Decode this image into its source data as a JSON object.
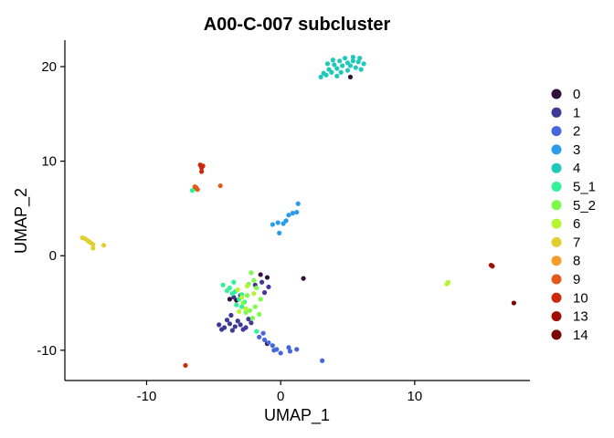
{
  "chart_data": {
    "type": "scatter",
    "title": "A00-C-007 subcluster",
    "xlabel": "UMAP_1",
    "ylabel": "UMAP_2",
    "xlim": [
      -16.1,
      18.6
    ],
    "ylim": [
      -13.2,
      22.8
    ],
    "xticks": [
      -10,
      0,
      10
    ],
    "yticks": [
      -10,
      0,
      10,
      20
    ],
    "xtick_labels": [
      "-10",
      "0",
      "10"
    ],
    "ytick_labels": [
      "-10",
      "0",
      "10",
      "20"
    ],
    "grid": false,
    "legend_position": "right",
    "series": [
      {
        "name": "0",
        "color": "#30123b",
        "points": [
          [
            5.2,
            18.9
          ],
          [
            1.7,
            -2.4
          ],
          [
            -1.5,
            -2.0
          ],
          [
            -1.0,
            -2.3
          ],
          [
            -3.8,
            -4.6
          ],
          [
            -3.3,
            -4.7
          ],
          [
            -1.0,
            -9.3
          ]
        ]
      },
      {
        "name": "1",
        "color": "#3e3994",
        "points": [
          [
            -4.6,
            -7.3
          ],
          [
            -4.2,
            -7.6
          ],
          [
            -3.8,
            -7.2
          ],
          [
            -3.4,
            -7.5
          ],
          [
            -3.0,
            -7.3
          ],
          [
            -2.6,
            -7.6
          ],
          [
            -4.0,
            -6.8
          ],
          [
            -3.2,
            -6.9
          ],
          [
            -2.2,
            -7.1
          ],
          [
            -4.4,
            -7.8
          ],
          [
            -3.6,
            -7.9
          ],
          [
            -2.8,
            -7.8
          ],
          [
            -1.4,
            -2.8
          ],
          [
            -1.9,
            -3.1
          ],
          [
            -0.9,
            -3.3
          ],
          [
            -1.2,
            -3.9
          ],
          [
            -2.4,
            -6.7
          ],
          [
            -3.5,
            -4.4
          ],
          [
            -3.0,
            -4.2
          ],
          [
            -3.7,
            -6.3
          ]
        ]
      },
      {
        "name": "2",
        "color": "#4666dd",
        "points": [
          [
            -1.6,
            -8.6
          ],
          [
            -1.2,
            -8.9
          ],
          [
            -0.9,
            -9.2
          ],
          [
            -0.6,
            -9.5
          ],
          [
            -0.3,
            -9.9
          ],
          [
            0.0,
            -10.3
          ],
          [
            -0.5,
            -10.0
          ],
          [
            0.6,
            -9.7
          ],
          [
            -1.3,
            -8.2
          ],
          [
            0.7,
            -10.1
          ],
          [
            1.2,
            -9.9
          ],
          [
            3.1,
            -11.1
          ]
        ]
      },
      {
        "name": "3",
        "color": "#2a9ceb",
        "points": [
          [
            -0.6,
            3.3
          ],
          [
            -0.2,
            3.5
          ],
          [
            0.2,
            3.4
          ],
          [
            0.6,
            4.3
          ],
          [
            0.9,
            4.5
          ],
          [
            1.2,
            4.6
          ],
          [
            1.3,
            5.5
          ],
          [
            -0.1,
            2.4
          ],
          [
            0.4,
            3.7
          ]
        ]
      },
      {
        "name": "4",
        "color": "#1fc9ba",
        "points": [
          [
            3.0,
            18.9
          ],
          [
            3.4,
            19.1
          ],
          [
            3.8,
            19.4
          ],
          [
            4.2,
            19.8
          ],
          [
            4.6,
            20.1
          ],
          [
            5.0,
            20.4
          ],
          [
            5.4,
            20.6
          ],
          [
            5.8,
            20.5
          ],
          [
            6.2,
            20.3
          ],
          [
            3.6,
            19.7
          ],
          [
            4.0,
            20.2
          ],
          [
            4.4,
            20.6
          ],
          [
            4.8,
            20.9
          ],
          [
            5.2,
            20.1
          ],
          [
            5.6,
            19.9
          ],
          [
            6.0,
            19.7
          ],
          [
            3.2,
            19.3
          ],
          [
            4.5,
            19.4
          ],
          [
            5.0,
            19.6
          ],
          [
            3.9,
            20.7
          ],
          [
            5.4,
            21.0
          ],
          [
            4.2,
            19.0
          ],
          [
            5.9,
            20.9
          ],
          [
            3.5,
            20.3
          ]
        ]
      },
      {
        "name": "5_1",
        "color": "#31f299",
        "points": [
          [
            -4.3,
            -3.1
          ],
          [
            -3.8,
            -3.4
          ],
          [
            -3.4,
            -3.8
          ],
          [
            -2.9,
            -4.1
          ],
          [
            -3.6,
            -4.0
          ],
          [
            -3.1,
            -4.6
          ],
          [
            -2.7,
            -4.9
          ],
          [
            -3.3,
            -5.2
          ],
          [
            -2.9,
            -5.4
          ],
          [
            -4.0,
            -3.7
          ],
          [
            -3.5,
            -2.8
          ],
          [
            -6.4,
            7.1
          ],
          [
            -6.6,
            6.9
          ],
          [
            -1.8,
            -8.0
          ]
        ]
      },
      {
        "name": "5_2",
        "color": "#7dfb4c",
        "points": [
          [
            -2.2,
            -1.8
          ],
          [
            -2.0,
            -2.6
          ],
          [
            -1.8,
            -3.4
          ],
          [
            -2.4,
            -3.0
          ],
          [
            -2.5,
            -4.2
          ],
          [
            -2.8,
            -5.0
          ],
          [
            -1.9,
            -5.4
          ],
          [
            -1.6,
            -6.2
          ],
          [
            -2.1,
            -6.6
          ],
          [
            -2.6,
            -6.0
          ],
          [
            -1.5,
            -4.6
          ],
          [
            -2.3,
            -5.8
          ]
        ]
      },
      {
        "name": "6",
        "color": "#b6f631",
        "points": [
          [
            -3.2,
            -3.6
          ],
          [
            -2.9,
            -4.4
          ],
          [
            -2.6,
            -5.6
          ],
          [
            -3.1,
            -5.9
          ],
          [
            -2.5,
            -3.2
          ],
          [
            -2.0,
            -4.0
          ],
          [
            12.5,
            -2.8
          ],
          [
            12.4,
            -3.0
          ]
        ]
      },
      {
        "name": "7",
        "color": "#e0cf2f",
        "points": [
          [
            -14.8,
            1.9
          ],
          [
            -14.6,
            1.8
          ],
          [
            -14.4,
            1.6
          ],
          [
            -14.2,
            1.4
          ],
          [
            -14.0,
            1.2
          ],
          [
            -14.0,
            0.8
          ],
          [
            -13.2,
            1.1
          ],
          [
            -14.3,
            1.5
          ]
        ]
      },
      {
        "name": "8",
        "color": "#f39e29",
        "points": []
      },
      {
        "name": "9",
        "color": "#e35b1b",
        "points": [
          [
            -4.5,
            7.4
          ],
          [
            -6.3,
            7.2
          ],
          [
            -6.2,
            7.0
          ],
          [
            -6.4,
            7.3
          ]
        ]
      },
      {
        "name": "10",
        "color": "#cb2b0b",
        "points": [
          [
            -6.0,
            9.6
          ],
          [
            -5.9,
            9.3
          ],
          [
            -5.8,
            9.5
          ],
          [
            -5.9,
            8.9
          ],
          [
            -7.1,
            -11.6
          ]
        ]
      },
      {
        "name": "13",
        "color": "#9d0f04",
        "points": [
          [
            15.7,
            -1.0
          ],
          [
            15.8,
            -1.1
          ]
        ]
      },
      {
        "name": "14",
        "color": "#7a0403",
        "points": [
          [
            17.4,
            -5.0
          ]
        ]
      }
    ]
  }
}
